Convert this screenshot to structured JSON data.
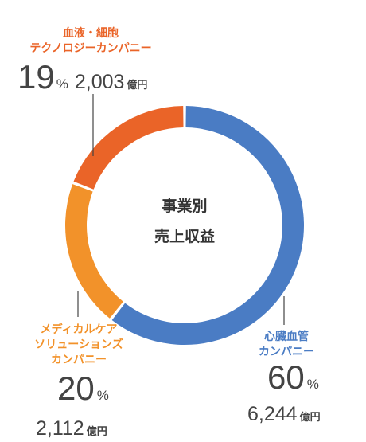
{
  "chart_data": {
    "type": "pie",
    "center_title": [
      "事業別",
      "売上収益"
    ],
    "slices": [
      {
        "name_lines": [
          "心臓血管",
          "カンパニー"
        ],
        "percent": 60,
        "percent_unit": "%",
        "amount": "6,244",
        "amount_unit": "億円",
        "color": "#4a7cc4"
      },
      {
        "name_lines": [
          "メディカルケア",
          "ソリューションズ",
          "カンパニー"
        ],
        "percent": 20,
        "percent_unit": "%",
        "amount": "2,112",
        "amount_unit": "億円",
        "color": "#f2922a"
      },
      {
        "name_lines": [
          "血液・細胞",
          "テクノロジーカンパニー"
        ],
        "percent": 19,
        "percent_unit": "%",
        "amount": "2,003",
        "amount_unit": "億円",
        "color": "#ea6428"
      }
    ]
  }
}
